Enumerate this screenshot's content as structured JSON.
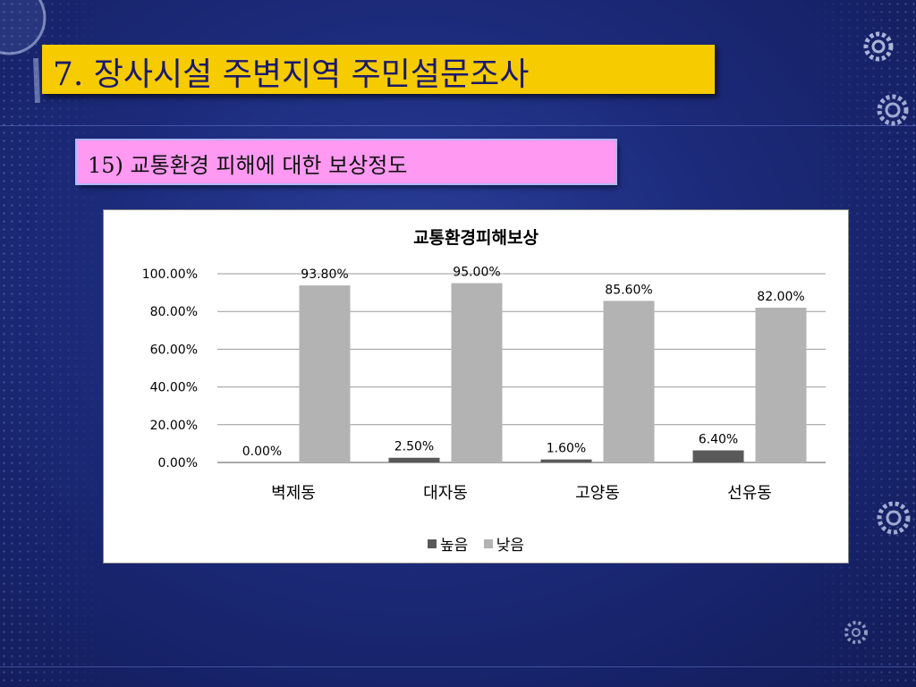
{
  "slide": {
    "title": "7. 장사시설 주변지역 주민설문조사",
    "subtitle": "15) 교통환경 피해에 대한 보상정도"
  },
  "colors": {
    "title_bg": "#f6cb00",
    "subtitle_bg": "#ff99f2",
    "series_high": "#595959",
    "series_low": "#b3b3b3"
  },
  "chart_data": {
    "type": "bar",
    "title": "교통환경피해보상",
    "categories": [
      "벽제동",
      "대자동",
      "고양동",
      "선유동"
    ],
    "series": [
      {
        "name": "높음",
        "values": [
          0.0,
          2.5,
          1.6,
          6.4
        ],
        "labels": [
          "0.00%",
          "2.50%",
          "1.60%",
          "6.40%"
        ]
      },
      {
        "name": "낮음",
        "values": [
          93.8,
          95.0,
          85.6,
          82.0
        ],
        "labels": [
          "93.80%",
          "95.00%",
          "85.60%",
          "82.00%"
        ]
      }
    ],
    "yticks": [
      "0.00%",
      "20.00%",
      "40.00%",
      "60.00%",
      "80.00%",
      "100.00%"
    ],
    "ylim": [
      0,
      100
    ],
    "grid": true,
    "legend": "bottom"
  }
}
